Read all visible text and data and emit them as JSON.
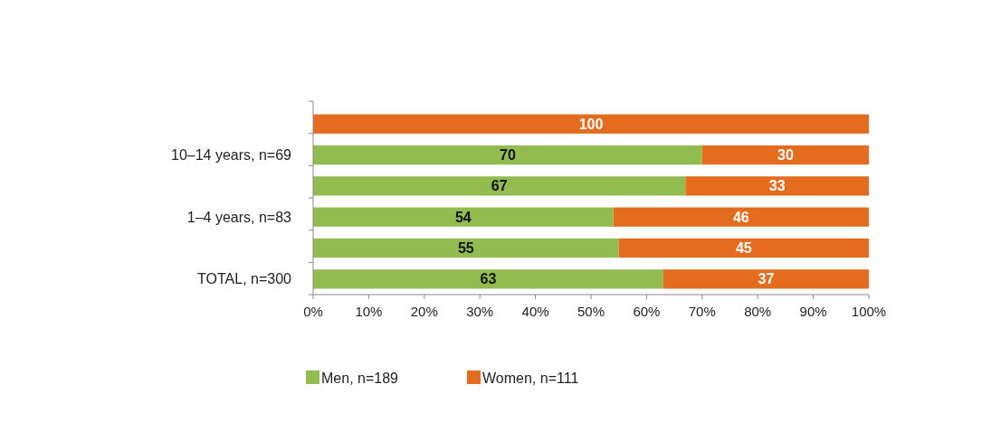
{
  "chart_data": {
    "type": "bar",
    "orientation": "horizontal",
    "stacked": true,
    "categories": [
      null,
      "10–14  years, n=69",
      null,
      "1–4 years, n=83",
      null,
      "TOTAL, n=300"
    ],
    "series": [
      {
        "name": "Men, n=189",
        "color": "#92bb50",
        "values": [
          0,
          70,
          67,
          54,
          55,
          63
        ],
        "value_labels": [
          null,
          "70",
          "67",
          "54",
          "55",
          "63"
        ]
      },
      {
        "name": "Women, n=111",
        "color": "#e46c1e",
        "values": [
          100,
          30,
          33,
          46,
          45,
          37
        ],
        "value_labels": [
          "100",
          "30",
          "33",
          "46",
          "45",
          "37"
        ]
      }
    ],
    "xlim": [
      0,
      100
    ],
    "xticks": [
      {
        "value": 0,
        "label": "0%"
      },
      {
        "value": 10,
        "label": "10%"
      },
      {
        "value": 20,
        "label": "20%"
      },
      {
        "value": 30,
        "label": "30%"
      },
      {
        "value": 40,
        "label": "40%"
      },
      {
        "value": 50,
        "label": "50%"
      },
      {
        "value": 60,
        "label": "60%"
      },
      {
        "value": 70,
        "label": "70%"
      },
      {
        "value": 80,
        "label": "80%"
      },
      {
        "value": 90,
        "label": "90%"
      },
      {
        "value": 100,
        "label": "100%"
      }
    ],
    "grid": false,
    "legend": "bottom"
  }
}
